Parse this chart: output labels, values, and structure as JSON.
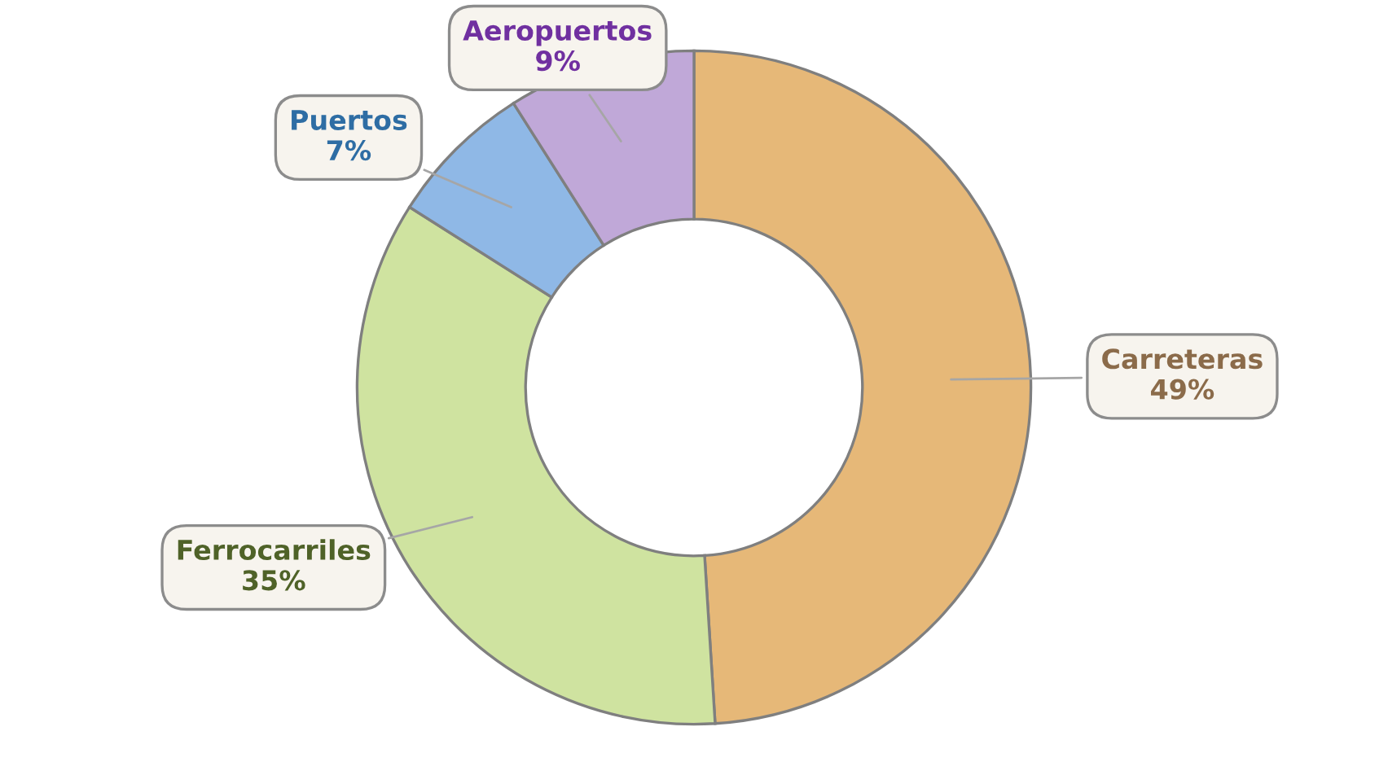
{
  "chart_data": {
    "type": "donut",
    "categories": [
      "Carreteras",
      "Ferrocarriles",
      "Puertos",
      "Aeropuertos"
    ],
    "values": [
      49,
      35,
      7,
      9
    ],
    "value_labels": [
      "49%",
      "35%",
      "7%",
      "9%"
    ],
    "colors": [
      "#e6b878",
      "#cfe3a0",
      "#8fb8e6",
      "#c0a8d8"
    ],
    "legend": false
  }
}
